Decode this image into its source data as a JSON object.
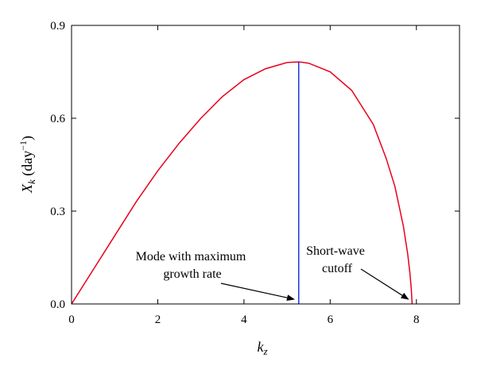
{
  "chart_data": {
    "type": "line",
    "title": "",
    "xlabel": "k",
    "xlabel_sub": "z",
    "ylabel": "X",
    "ylabel_sub": "k",
    "ylabel_unit_open": " (day",
    "ylabel_unit_sup": "−1",
    "ylabel_unit_close": ")",
    "xlim": [
      0,
      9
    ],
    "ylim": [
      0,
      0.9
    ],
    "xticks": [
      0,
      2,
      4,
      6,
      8
    ],
    "xtick_labels": [
      "0",
      "2",
      "4",
      "6",
      "8"
    ],
    "yticks": [
      0,
      0.3,
      0.6,
      0.9
    ],
    "ytick_labels": [
      "0.0",
      "0.3",
      "0.6",
      "0.9"
    ],
    "grid": false,
    "series": [
      {
        "color": "#e8001c",
        "x": [
          0,
          0.5,
          1.0,
          1.5,
          2.0,
          2.5,
          3.0,
          3.5,
          4.0,
          4.5,
          5.0,
          5.27,
          5.5,
          6.0,
          6.5,
          7.0,
          7.3,
          7.5,
          7.7,
          7.8,
          7.85,
          7.88,
          7.9
        ],
        "y": [
          0,
          0.11,
          0.22,
          0.33,
          0.43,
          0.52,
          0.6,
          0.67,
          0.725,
          0.76,
          0.78,
          0.782,
          0.778,
          0.75,
          0.69,
          0.58,
          0.47,
          0.38,
          0.25,
          0.16,
          0.1,
          0.05,
          0.0
        ]
      }
    ],
    "vertical_lines": [
      {
        "x": 5.27,
        "y0": 0,
        "y1": 0.782,
        "color": "#2233dd"
      }
    ],
    "annotations": [
      {
        "lines": [
          "Mode with maximum",
          "growth rate"
        ],
        "arrow_to": [
          5.2,
          0.01
        ]
      },
      {
        "lines": [
          "Short-wave",
          "cutoff"
        ],
        "arrow_to": [
          7.85,
          0.01
        ]
      }
    ]
  }
}
